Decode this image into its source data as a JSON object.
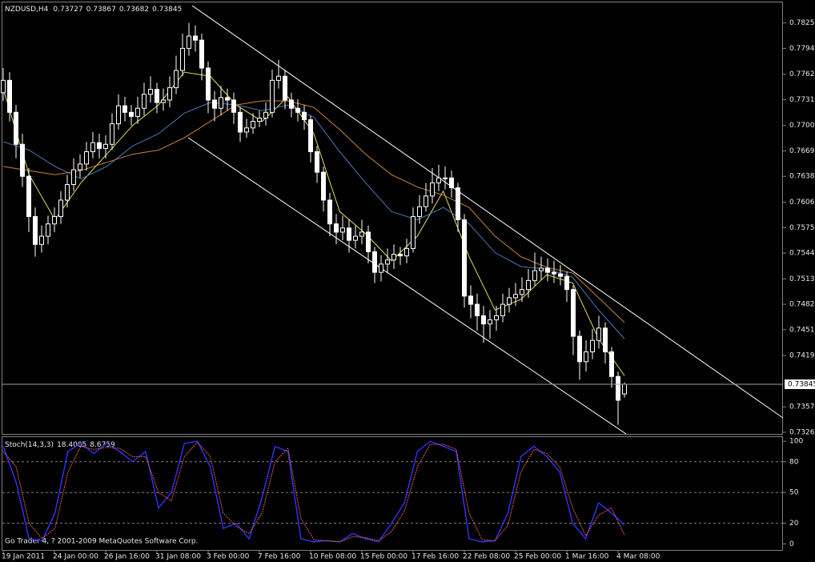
{
  "chart_data": [
    {
      "type": "candlestick",
      "title": "NZDUSD,H4",
      "candles": [
        [
          0.774,
          0.777,
          0.773,
          0.7755
        ],
        [
          0.7755,
          0.7765,
          0.7705,
          0.7716
        ],
        [
          0.7716,
          0.7725,
          0.766,
          0.7677
        ],
        [
          0.7677,
          0.769,
          0.7625,
          0.7638
        ],
        [
          0.7638,
          0.7648,
          0.757,
          0.7589
        ],
        [
          0.7589,
          0.76,
          0.754,
          0.7555
        ],
        [
          0.7555,
          0.7578,
          0.7545,
          0.7565
        ],
        [
          0.7565,
          0.759,
          0.7555,
          0.758
        ],
        [
          0.758,
          0.76,
          0.757,
          0.7589
        ],
        [
          0.7589,
          0.762,
          0.758,
          0.7609
        ],
        [
          0.7609,
          0.764,
          0.76,
          0.7628
        ],
        [
          0.7628,
          0.766,
          0.762,
          0.7646
        ],
        [
          0.7646,
          0.7665,
          0.7636,
          0.7653
        ],
        [
          0.7653,
          0.768,
          0.7645,
          0.7668
        ],
        [
          0.7668,
          0.7692,
          0.766,
          0.7679
        ],
        [
          0.7679,
          0.769,
          0.766,
          0.7672
        ],
        [
          0.7672,
          0.7688,
          0.766,
          0.7677
        ],
        [
          0.7677,
          0.7715,
          0.767,
          0.7702
        ],
        [
          0.7702,
          0.7738,
          0.7695,
          0.7724
        ],
        [
          0.7724,
          0.7735,
          0.7705,
          0.7716
        ],
        [
          0.7716,
          0.7725,
          0.77,
          0.7711
        ],
        [
          0.7711,
          0.7735,
          0.7702,
          0.7721
        ],
        [
          0.7721,
          0.7752,
          0.7712,
          0.7738
        ],
        [
          0.7738,
          0.776,
          0.7728,
          0.7744
        ],
        [
          0.7744,
          0.7752,
          0.7715,
          0.7728
        ],
        [
          0.7728,
          0.7745,
          0.7718,
          0.7731
        ],
        [
          0.7731,
          0.776,
          0.7722,
          0.7746
        ],
        [
          0.7746,
          0.7785,
          0.7738,
          0.7767
        ],
        [
          0.7767,
          0.7812,
          0.776,
          0.7794
        ],
        [
          0.7794,
          0.7825,
          0.7785,
          0.7809
        ],
        [
          0.7809,
          0.7822,
          0.779,
          0.7804
        ],
        [
          0.7804,
          0.7812,
          0.7755,
          0.777
        ],
        [
          0.777,
          0.7778,
          0.7715,
          0.7731
        ],
        [
          0.7731,
          0.7742,
          0.7705,
          0.7721
        ],
        [
          0.7721,
          0.7748,
          0.7712,
          0.7734
        ],
        [
          0.7734,
          0.7745,
          0.7718,
          0.7731
        ],
        [
          0.7731,
          0.774,
          0.7702,
          0.7716
        ],
        [
          0.7716,
          0.7722,
          0.768,
          0.7692
        ],
        [
          0.7692,
          0.7708,
          0.7685,
          0.7697
        ],
        [
          0.7697,
          0.7715,
          0.769,
          0.7705
        ],
        [
          0.7705,
          0.7718,
          0.7698,
          0.7709
        ],
        [
          0.7709,
          0.7728,
          0.77,
          0.7716
        ],
        [
          0.7716,
          0.7768,
          0.771,
          0.7755
        ],
        [
          0.7755,
          0.778,
          0.7745,
          0.776
        ],
        [
          0.776,
          0.7768,
          0.772,
          0.7731
        ],
        [
          0.7731,
          0.774,
          0.771,
          0.7721
        ],
        [
          0.7721,
          0.7732,
          0.7705,
          0.7716
        ],
        [
          0.7716,
          0.7725,
          0.7695,
          0.7707
        ],
        [
          0.7707,
          0.7712,
          0.7655,
          0.7668
        ],
        [
          0.7668,
          0.7675,
          0.763,
          0.7643
        ],
        [
          0.7643,
          0.765,
          0.7595,
          0.7609
        ],
        [
          0.7609,
          0.7618,
          0.7565,
          0.758
        ],
        [
          0.758,
          0.7592,
          0.7555,
          0.757
        ],
        [
          0.757,
          0.759,
          0.756,
          0.7575
        ],
        [
          0.7575,
          0.7585,
          0.7545,
          0.756
        ],
        [
          0.756,
          0.7578,
          0.755,
          0.7565
        ],
        [
          0.7565,
          0.7585,
          0.7555,
          0.757
        ],
        [
          0.757,
          0.7578,
          0.7532,
          0.7546
        ],
        [
          0.7546,
          0.7552,
          0.7508,
          0.7521
        ],
        [
          0.7521,
          0.7542,
          0.751,
          0.7531
        ],
        [
          0.7531,
          0.755,
          0.752,
          0.7536
        ],
        [
          0.7536,
          0.7555,
          0.7525,
          0.7543
        ],
        [
          0.7543,
          0.7552,
          0.753,
          0.7541
        ],
        [
          0.7541,
          0.7562,
          0.7532,
          0.755
        ],
        [
          0.755,
          0.76,
          0.7545,
          0.7589
        ],
        [
          0.7589,
          0.7615,
          0.758,
          0.7601
        ],
        [
          0.7601,
          0.763,
          0.7595,
          0.7614
        ],
        [
          0.7614,
          0.7648,
          0.7605,
          0.763
        ],
        [
          0.763,
          0.7652,
          0.762,
          0.7636
        ],
        [
          0.7636,
          0.765,
          0.7622,
          0.7636
        ],
        [
          0.7636,
          0.7645,
          0.7612,
          0.7624
        ],
        [
          0.7624,
          0.763,
          0.757,
          0.7585
        ],
        [
          0.7585,
          0.7592,
          0.7478,
          0.7492
        ],
        [
          0.7492,
          0.7505,
          0.7465,
          0.7482
        ],
        [
          0.7482,
          0.7495,
          0.745,
          0.7468
        ],
        [
          0.7468,
          0.748,
          0.7435,
          0.7458
        ],
        [
          0.7458,
          0.7475,
          0.744,
          0.7463
        ],
        [
          0.7463,
          0.748,
          0.745,
          0.7468
        ],
        [
          0.7468,
          0.7495,
          0.746,
          0.7482
        ],
        [
          0.7482,
          0.7502,
          0.7472,
          0.749
        ],
        [
          0.749,
          0.7508,
          0.748,
          0.7494
        ],
        [
          0.7494,
          0.7515,
          0.7485,
          0.75
        ],
        [
          0.75,
          0.7525,
          0.749,
          0.7511
        ],
        [
          0.7511,
          0.7545,
          0.7505,
          0.7523
        ],
        [
          0.7523,
          0.754,
          0.7512,
          0.7526
        ],
        [
          0.7526,
          0.7538,
          0.751,
          0.7521
        ],
        [
          0.7521,
          0.7535,
          0.7508,
          0.7519
        ],
        [
          0.7519,
          0.753,
          0.7505,
          0.7516
        ],
        [
          0.7516,
          0.7522,
          0.7485,
          0.75
        ],
        [
          0.75,
          0.7505,
          0.742,
          0.7443
        ],
        [
          0.7443,
          0.745,
          0.739,
          0.7412
        ],
        [
          0.7412,
          0.7438,
          0.74,
          0.7424
        ],
        [
          0.7424,
          0.7452,
          0.7415,
          0.7438
        ],
        [
          0.7438,
          0.7468,
          0.7428,
          0.7453
        ],
        [
          0.7453,
          0.746,
          0.741,
          0.7424
        ],
        [
          0.7424,
          0.743,
          0.738,
          0.7394
        ],
        [
          0.7394,
          0.74,
          0.7335,
          0.7365
        ],
        [
          0.73727,
          0.73867,
          0.73682,
          0.73845
        ]
      ],
      "lines": [
        {
          "color": "#e6dc5a",
          "values": [
            0.7745,
            0.764,
            0.7585,
            0.763,
            0.7665,
            0.77,
            0.7725,
            0.7765,
            0.776,
            0.7725,
            0.7705,
            0.7735,
            0.769,
            0.7595,
            0.7568,
            0.7535,
            0.7565,
            0.762,
            0.754,
            0.7475,
            0.7488,
            0.7518,
            0.7508,
            0.744,
            0.7395
          ]
        },
        {
          "color": "#4a78b8",
          "values": [
            0.768,
            0.767,
            0.765,
            0.7635,
            0.765,
            0.7675,
            0.769,
            0.7715,
            0.7728,
            0.7725,
            0.7718,
            0.7725,
            0.771,
            0.7668,
            0.763,
            0.7595,
            0.7585,
            0.76,
            0.758,
            0.7545,
            0.7528,
            0.7525,
            0.7515,
            0.7475,
            0.744
          ]
        },
        {
          "color": "#c8863c",
          "values": [
            0.765,
            0.7645,
            0.764,
            0.7645,
            0.7655,
            0.7665,
            0.767,
            0.7685,
            0.7705,
            0.7725,
            0.773,
            0.773,
            0.7722,
            0.7695,
            0.7665,
            0.764,
            0.7625,
            0.7615,
            0.76,
            0.7565,
            0.754,
            0.7527,
            0.752,
            0.749,
            0.746
          ]
        }
      ],
      "ylim": [
        0.7323,
        0.7851
      ],
      "yticks": [
        {
          "value": 0.7825,
          "label": "0.78250"
        },
        {
          "value": 0.7794,
          "label": "0.77940"
        },
        0.77625,
        0.77315,
        {
          "value": 0.77,
          "label": "0.77000"
        },
        {
          "value": 0.7669,
          "label": "0.76690"
        },
        {
          "value": 0.7638,
          "label": "0.76380"
        },
        0.76065,
        0.75755,
        0.75445,
        {
          "value": 0.7513,
          "label": "0.75130"
        },
        {
          "value": 0.7482,
          "label": "0.74820"
        },
        {
          "value": 0.7451,
          "label": "0.74510"
        },
        0.74195,
        {
          "value": 0.7357,
          "label": "0.73570"
        },
        {
          "value": 0.7326,
          "label": "0.73260"
        }
      ],
      "x_labels": [
        "19 Jan 2011",
        "24 Jan 00:00",
        "26 Jan 16:00",
        "31 Jan 08:00",
        "3 Feb 00:00",
        "7 Feb 16:00",
        "10 Feb 08:00",
        "15 Feb 00:00",
        "17 Feb 16:00",
        "22 Feb 08:00",
        "25 Feb 00:00",
        "1 Mar 16:00",
        "4 Mar 08:00"
      ]
    },
    {
      "type": "line",
      "title": "Stoch(14,3,3)",
      "series": [
        {
          "color": "#3232ff",
          "values": [
            95,
            60,
            5,
            3,
            30,
            90,
            98,
            88,
            98,
            90,
            80,
            90,
            35,
            50,
            98,
            100,
            75,
            15,
            20,
            5,
            45,
            95,
            90,
            5,
            2,
            3,
            2,
            10,
            5,
            2,
            20,
            40,
            90,
            100,
            95,
            90,
            5,
            2,
            3,
            30,
            85,
            95,
            85,
            70,
            20,
            5,
            40,
            30,
            18.4005
          ]
        },
        {
          "color": "#e0603a",
          "values": [
            90,
            75,
            20,
            5,
            15,
            70,
            95,
            92,
            94,
            93,
            85,
            85,
            50,
            42,
            85,
            99,
            85,
            30,
            17,
            10,
            30,
            80,
            93,
            25,
            4,
            3,
            2,
            7,
            6,
            3,
            12,
            32,
            75,
            97,
            97,
            92,
            30,
            4,
            3,
            18,
            70,
            92,
            88,
            75,
            35,
            8,
            28,
            35,
            8.6759
          ]
        }
      ],
      "ylim": [
        -6,
        104
      ],
      "yticks": [
        100,
        80,
        50,
        20,
        0
      ],
      "levels": [
        80,
        50,
        20
      ]
    }
  ],
  "copyright": "Go Trader 4, ? 2001-2009 MetaQuotes Software Corp."
}
